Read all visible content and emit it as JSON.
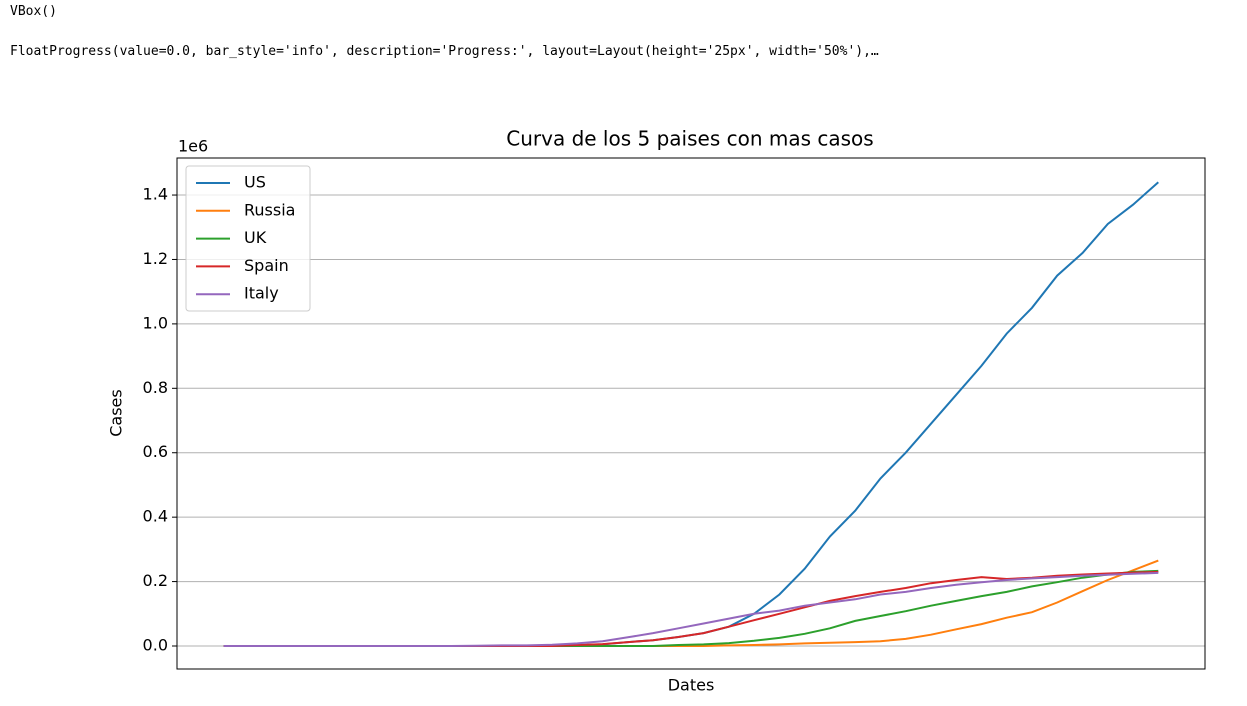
{
  "cell_output": [
    "VBox()",
    "FloatProgress(value=0.0, bar_style='info', description='Progress:', layout=Layout(height='25px', width='50%'),…"
  ],
  "chart_data": {
    "type": "line",
    "title": "Curva de los 5 paises con mas casos",
    "xlabel": "Dates",
    "ylabel": "Cases",
    "y_offset_label": "1e6",
    "ylim": [
      -71400,
      1515000
    ],
    "yticks": [
      {
        "value": 0,
        "label": "0.0"
      },
      {
        "value": 200000,
        "label": "0.2"
      },
      {
        "value": 400000,
        "label": "0.4"
      },
      {
        "value": 600000,
        "label": "0.6"
      },
      {
        "value": 800000,
        "label": "0.8"
      },
      {
        "value": 1000000,
        "label": "1.0"
      },
      {
        "value": 1200000,
        "label": "1.2"
      },
      {
        "value": 1400000,
        "label": "1.4"
      }
    ],
    "grid": "y",
    "legend": "upper left",
    "series": [
      {
        "name": "US",
        "color": "#1f77b4",
        "values": [
          0,
          0,
          0,
          0,
          0,
          0,
          0,
          0,
          0,
          0,
          0,
          0,
          0,
          0,
          2000,
          5000,
          12000,
          18000,
          28000,
          40000,
          60000,
          100000,
          160000,
          240000,
          340000,
          420000,
          520000,
          600000,
          690000,
          780000,
          870000,
          970000,
          1050000,
          1150000,
          1220000,
          1310000,
          1370000,
          1440000
        ]
      },
      {
        "name": "Russia",
        "color": "#ff7f0e",
        "values": [
          0,
          0,
          0,
          0,
          0,
          0,
          0,
          0,
          0,
          0,
          0,
          0,
          0,
          0,
          0,
          0,
          0,
          0,
          0,
          0,
          2000,
          3000,
          5000,
          8000,
          10000,
          12000,
          15000,
          22000,
          35000,
          52000,
          68000,
          88000,
          105000,
          135000,
          170000,
          205000,
          235000,
          265000
        ]
      },
      {
        "name": "UK",
        "color": "#2ca02c",
        "values": [
          0,
          0,
          0,
          0,
          0,
          0,
          0,
          0,
          0,
          0,
          0,
          0,
          0,
          0,
          0,
          0,
          0,
          0,
          3000,
          5000,
          9000,
          16000,
          25000,
          38000,
          55000,
          78000,
          93000,
          108000,
          125000,
          140000,
          155000,
          168000,
          185000,
          198000,
          212000,
          222000,
          230000,
          233000
        ]
      },
      {
        "name": "Spain",
        "color": "#d62728",
        "values": [
          0,
          0,
          0,
          0,
          0,
          0,
          0,
          0,
          0,
          0,
          0,
          0,
          0,
          0,
          3000,
          6000,
          12000,
          18000,
          28000,
          40000,
          60000,
          80000,
          100000,
          120000,
          140000,
          155000,
          168000,
          180000,
          195000,
          205000,
          214000,
          208000,
          212000,
          218000,
          222000,
          225000,
          228000,
          230000
        ]
      },
      {
        "name": "Italy",
        "color": "#9467bd",
        "values": [
          0,
          0,
          0,
          0,
          0,
          0,
          0,
          0,
          0,
          0,
          1000,
          2000,
          2000,
          4000,
          8000,
          15000,
          27000,
          40000,
          55000,
          70000,
          85000,
          100000,
          110000,
          125000,
          135000,
          145000,
          160000,
          168000,
          180000,
          190000,
          198000,
          205000,
          210000,
          214000,
          218000,
          221000,
          224000,
          227000
        ]
      }
    ]
  }
}
